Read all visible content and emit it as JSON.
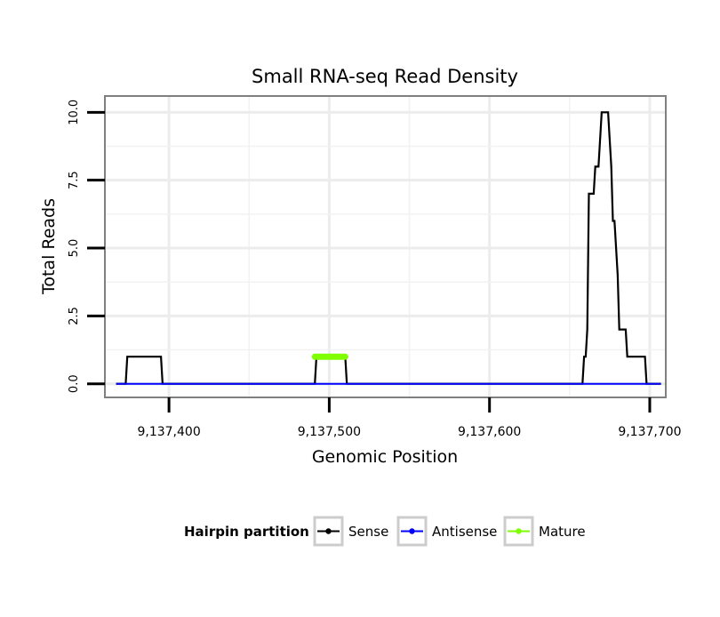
{
  "chart_data": {
    "type": "line",
    "title": "Small RNA-seq Read Density",
    "xlabel": "Genomic Position",
    "ylabel": "Total Reads",
    "xlim": [
      9137360,
      9137710
    ],
    "ylim": [
      -0.5,
      10.6
    ],
    "x_ticks": [
      {
        "value": 9137400,
        "label": "9,137,400"
      },
      {
        "value": 9137500,
        "label": "9,137,500"
      },
      {
        "value": 9137600,
        "label": "9,137,600"
      },
      {
        "value": 9137700,
        "label": "9,137,700"
      }
    ],
    "y_ticks": [
      {
        "value": 0,
        "label": "0.0"
      },
      {
        "value": 2.5,
        "label": "2.5"
      },
      {
        "value": 5,
        "label": "5.0"
      },
      {
        "value": 7.5,
        "label": "7.5"
      },
      {
        "value": 10,
        "label": "10.0"
      }
    ],
    "grid": true,
    "legend": {
      "title": "Hairpin partition",
      "placement": "bottom",
      "entries": [
        "Sense",
        "Antisense",
        "Mature"
      ]
    },
    "series": [
      {
        "name": "Sense",
        "color": "#000000",
        "x": [
          9137367,
          9137373,
          9137374,
          9137395,
          9137396,
          9137491,
          9137492,
          9137510,
          9137511,
          9137658,
          9137659,
          9137660,
          9137661,
          9137662,
          9137663,
          9137664,
          9137665,
          9137666,
          9137667,
          9137668,
          9137669,
          9137670,
          9137671,
          9137672,
          9137673,
          9137674,
          9137675,
          9137676,
          9137677,
          9137678,
          9137679,
          9137680,
          9137681,
          9137682,
          9137683,
          9137684,
          9137685,
          9137686,
          9137687,
          9137688,
          9137689,
          9137690,
          9137691,
          9137692,
          9137693,
          9137694,
          9137695,
          9137696,
          9137697,
          9137698,
          9137707
        ],
        "y": [
          0,
          0,
          1,
          1,
          0,
          0,
          1,
          1,
          0,
          0,
          1,
          1,
          2,
          7,
          7,
          7,
          7,
          8,
          8,
          8,
          9,
          10,
          10,
          10,
          10,
          10,
          9,
          8,
          6,
          6,
          5,
          4,
          2,
          2,
          2,
          2,
          2,
          1,
          1,
          1,
          1,
          1,
          1,
          1,
          1,
          1,
          1,
          1,
          1,
          0,
          0
        ]
      },
      {
        "name": "Antisense",
        "color": "#0000ff",
        "x": [
          9137367,
          9137707
        ],
        "y": [
          0,
          0
        ]
      },
      {
        "name": "Mature",
        "color": "#7fff00",
        "x": [
          9137491,
          9137510
        ],
        "y": [
          1,
          1
        ]
      }
    ]
  }
}
